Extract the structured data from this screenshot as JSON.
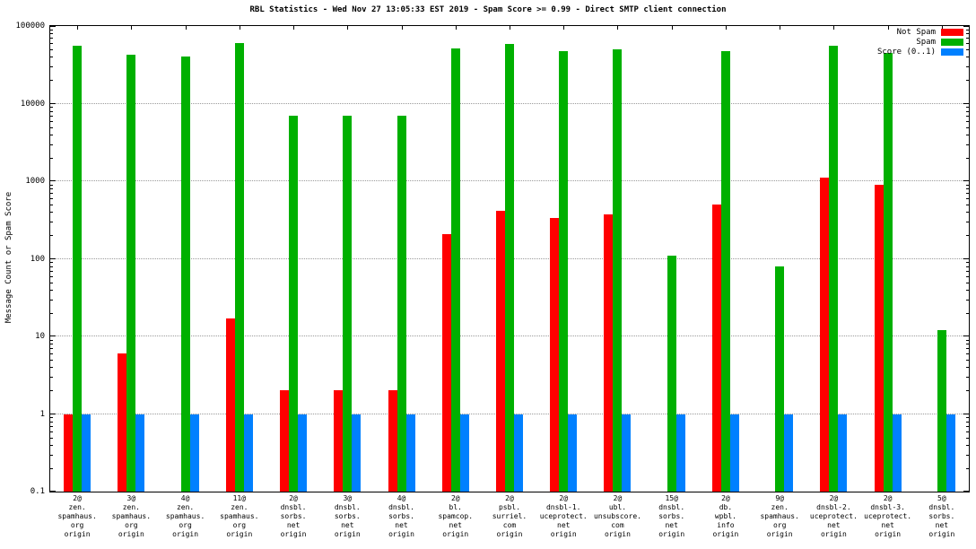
{
  "chart_data": {
    "type": "bar",
    "title": "RBL Statistics - Wed Nov 27 13:05:33 EST 2019 - Spam Score >= 0.99 - Direct SMTP client connection",
    "ylabel": "Message Count or Spam Score",
    "xlabel": "",
    "scale": "log",
    "ylim": [
      0.1,
      100000
    ],
    "ytick_labels": [
      "0.1",
      "1",
      "10",
      "100",
      "1000",
      "10000",
      "100000"
    ],
    "ytick_values": [
      0.1,
      1,
      10,
      100,
      1000,
      10000,
      100000
    ],
    "grid": true,
    "legend_position": "top-right",
    "categories": [
      [
        "2@",
        "zen.",
        "spamhaus.",
        "org",
        "origin"
      ],
      [
        "3@",
        "zen.",
        "spamhaus.",
        "org",
        "origin"
      ],
      [
        "4@",
        "zen.",
        "spamhaus.",
        "org",
        "origin"
      ],
      [
        "11@",
        "zen.",
        "spamhaus.",
        "org",
        "origin"
      ],
      [
        "2@",
        "dnsbl.",
        "sorbs.",
        "net",
        "origin"
      ],
      [
        "3@",
        "dnsbl.",
        "sorbs.",
        "net",
        "origin"
      ],
      [
        "4@",
        "dnsbl.",
        "sorbs.",
        "net",
        "origin"
      ],
      [
        "2@",
        "bl.",
        "spamcop.",
        "net",
        "origin"
      ],
      [
        "2@",
        "psbl.",
        "surriel.",
        "com",
        "origin"
      ],
      [
        "2@",
        "dnsbl-1.",
        "uceprotect.",
        "net",
        "origin"
      ],
      [
        "2@",
        "ubl.",
        "unsubscore.",
        "com",
        "origin"
      ],
      [
        "15@",
        "dnsbl.",
        "sorbs.",
        "net",
        "origin"
      ],
      [
        "2@",
        "db.",
        "wpbl.",
        "info",
        "origin"
      ],
      [
        "9@",
        "zen.",
        "spamhaus.",
        "org",
        "origin"
      ],
      [
        "2@",
        "dnsbl-2.",
        "uceprotect.",
        "net",
        "origin"
      ],
      [
        "2@",
        "dnsbl-3.",
        "uceprotect.",
        "net",
        "origin"
      ],
      [
        "5@",
        "dnsbl.",
        "sorbs.",
        "net",
        "origin"
      ]
    ],
    "series": [
      {
        "name": "Not Spam",
        "color": "#ff0000",
        "values": [
          1,
          6,
          null,
          17,
          2,
          2,
          2,
          210,
          420,
          340,
          370,
          null,
          500,
          null,
          1100,
          900,
          null
        ]
      },
      {
        "name": "Spam",
        "color": "#00b000",
        "values": [
          55000,
          43000,
          40000,
          60000,
          7000,
          7000,
          7000,
          52000,
          58000,
          47000,
          50000,
          110,
          48000,
          80,
          55000,
          45000,
          12
        ]
      },
      {
        "name": "Score (0..1)",
        "color": "#0080ff",
        "values": [
          1,
          1,
          1,
          1,
          1,
          1,
          1,
          1,
          1,
          1,
          1,
          1,
          1,
          1,
          1,
          1,
          1
        ]
      }
    ]
  }
}
